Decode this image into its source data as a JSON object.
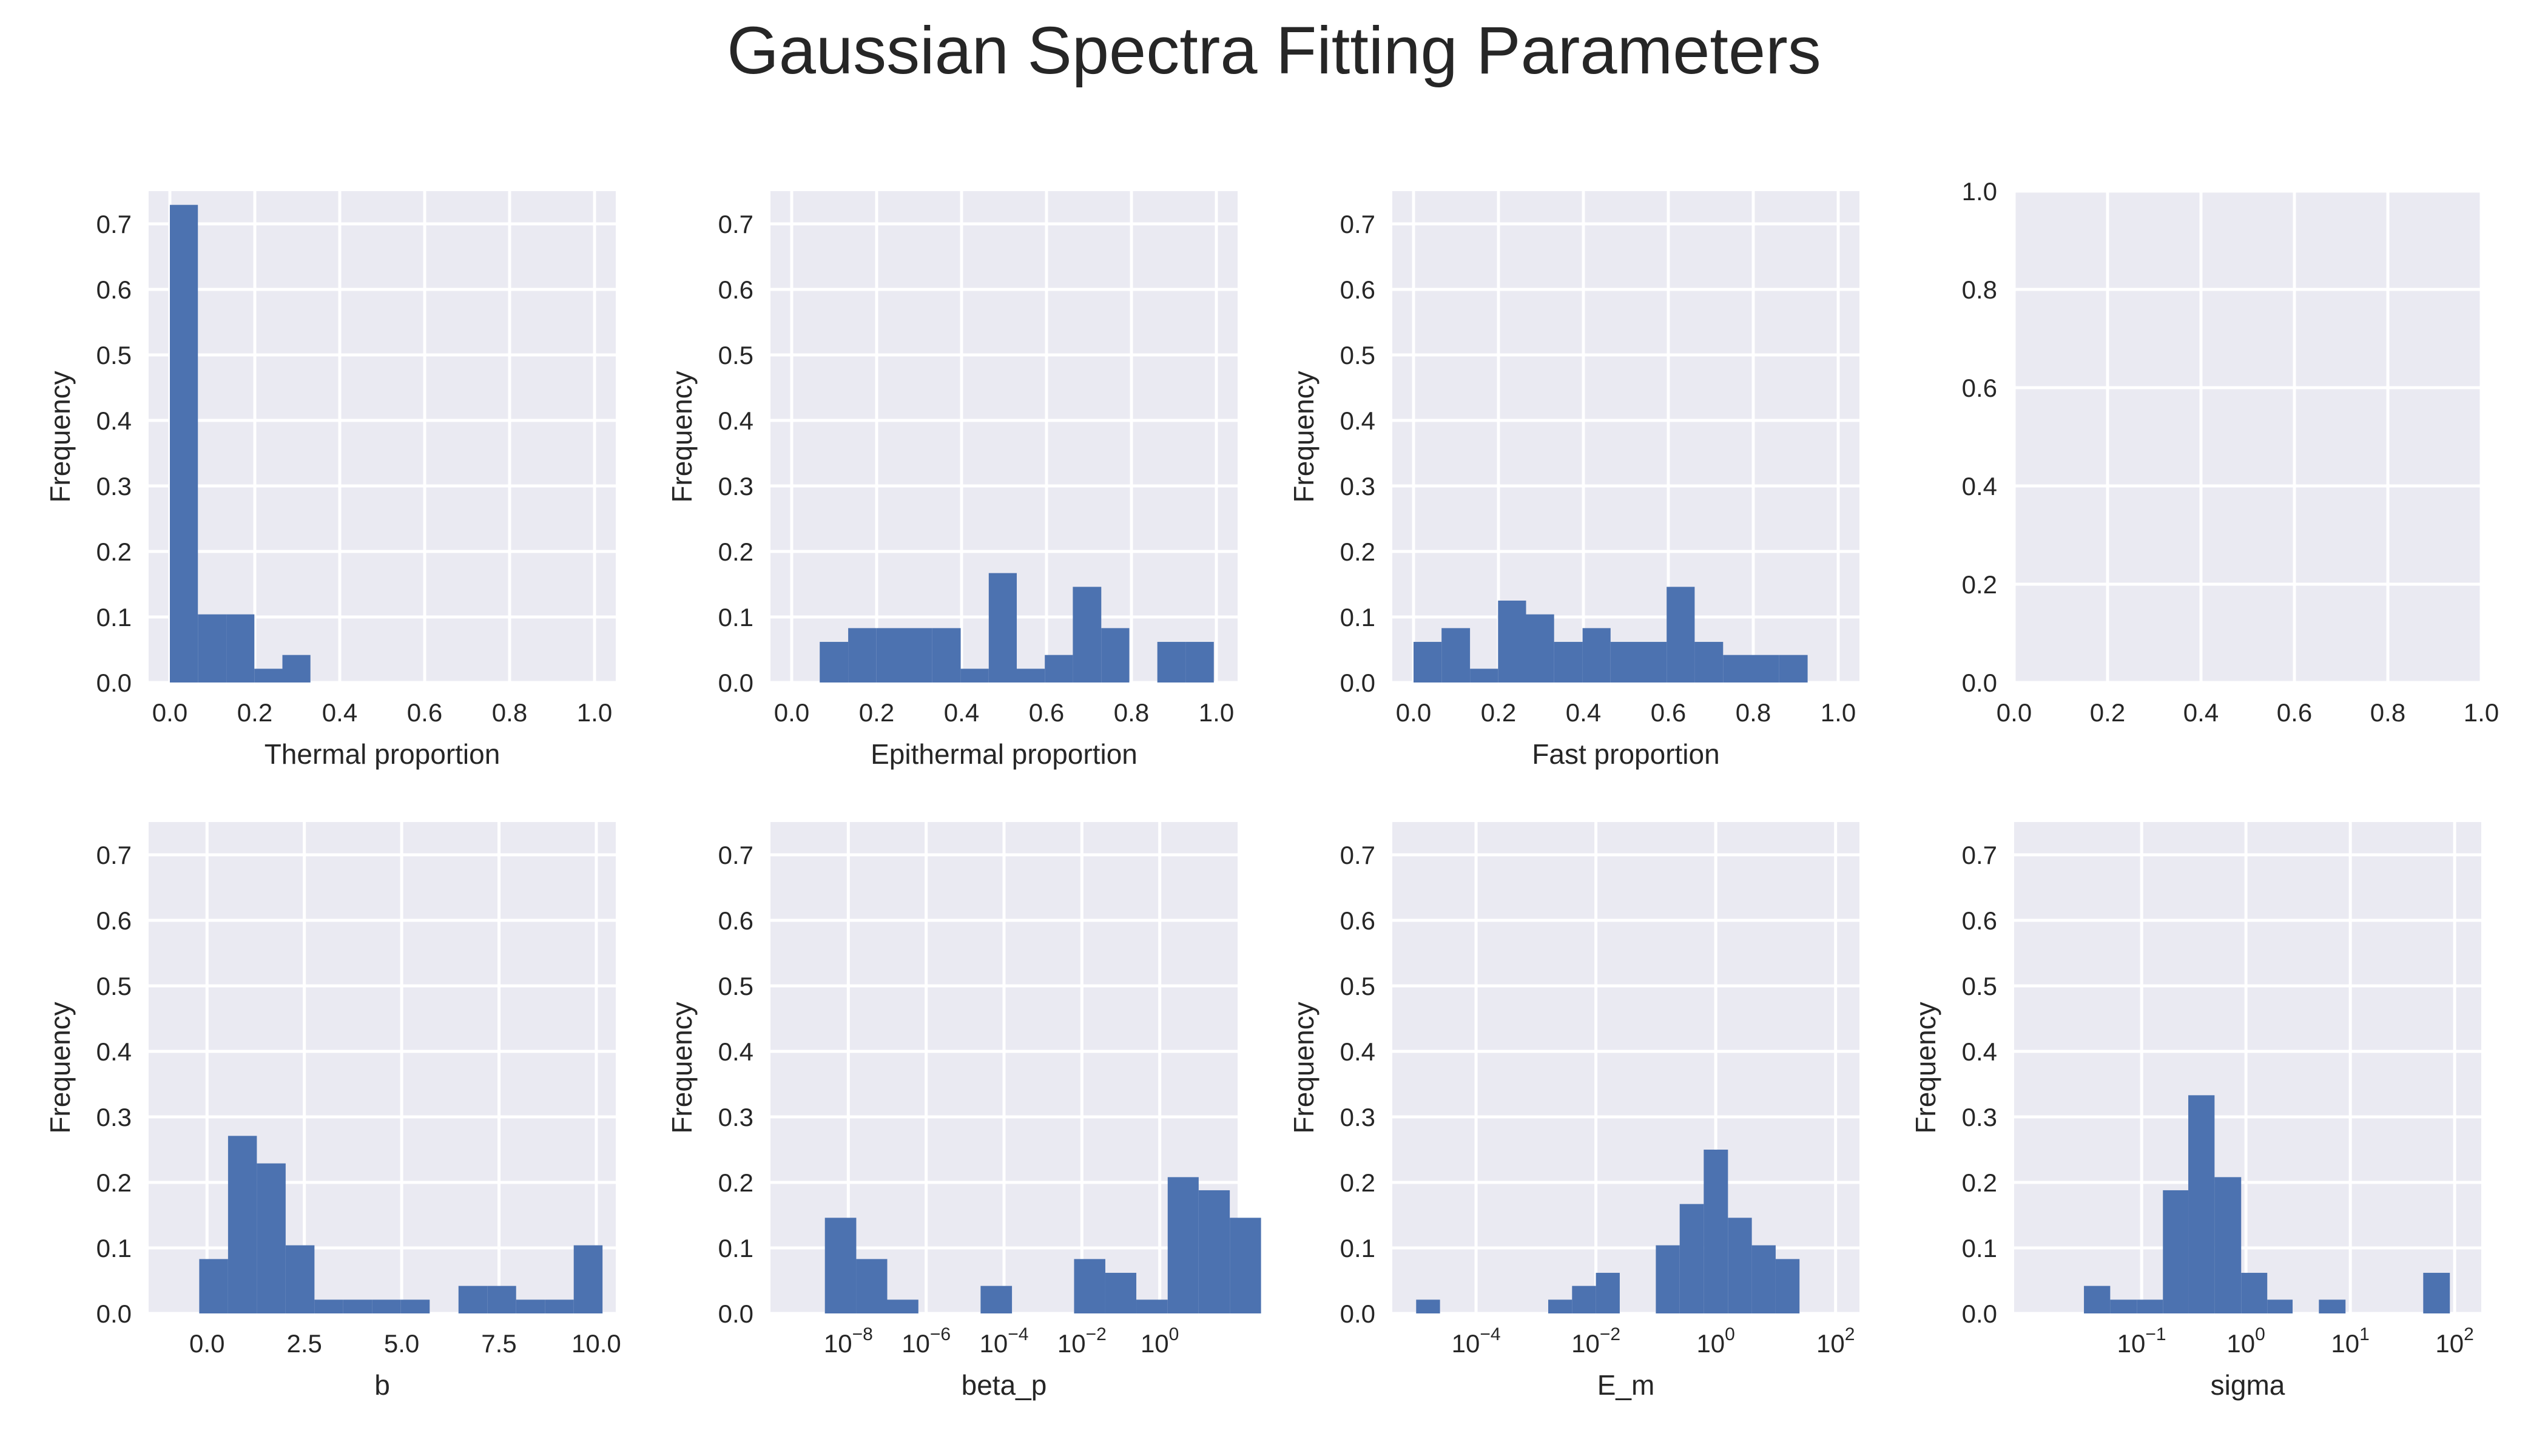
{
  "figure": {
    "title": "Gaussian Spectra Fitting Parameters"
  },
  "colors": {
    "bar": "#4c72b0",
    "panel_bg": "#eaeaf2",
    "grid": "#ffffff",
    "text": "#262626"
  },
  "chart_data": [
    {
      "type": "bar",
      "xlabel": "Thermal proportion",
      "ylabel": "Frequency",
      "xscale": "linear",
      "xlim": [
        -0.05,
        1.05
      ],
      "ylim": [
        0,
        0.75
      ],
      "xticks": [
        0,
        0.2,
        0.4,
        0.6,
        0.8,
        1.0
      ],
      "xtick_labels": [
        "0.0",
        "0.2",
        "0.4",
        "0.6",
        "0.8",
        "1.0"
      ],
      "yticks": [
        0,
        0.1,
        0.2,
        0.3,
        0.4,
        0.5,
        0.6,
        0.7
      ],
      "ytick_labels": [
        "0.0",
        "0.1",
        "0.2",
        "0.3",
        "0.4",
        "0.5",
        "0.6",
        "0.7"
      ],
      "bins": [
        {
          "x0": 0.0,
          "x1": 0.066,
          "y": 0.729
        },
        {
          "x0": 0.066,
          "x1": 0.133,
          "y": 0.104
        },
        {
          "x0": 0.133,
          "x1": 0.199,
          "y": 0.104
        },
        {
          "x0": 0.199,
          "x1": 0.265,
          "y": 0.021
        },
        {
          "x0": 0.265,
          "x1": 0.331,
          "y": 0.042
        }
      ]
    },
    {
      "type": "bar",
      "xlabel": "Epithermal proportion",
      "ylabel": "Frequency",
      "xscale": "linear",
      "xlim": [
        -0.05,
        1.05
      ],
      "ylim": [
        0,
        0.75
      ],
      "xticks": [
        0,
        0.2,
        0.4,
        0.6,
        0.8,
        1.0
      ],
      "xtick_labels": [
        "0.0",
        "0.2",
        "0.4",
        "0.6",
        "0.8",
        "1.0"
      ],
      "yticks": [
        0,
        0.1,
        0.2,
        0.3,
        0.4,
        0.5,
        0.6,
        0.7
      ],
      "ytick_labels": [
        "0.0",
        "0.1",
        "0.2",
        "0.3",
        "0.4",
        "0.5",
        "0.6",
        "0.7"
      ],
      "bins": [
        {
          "x0": 0.066,
          "x1": 0.133,
          "y": 0.062
        },
        {
          "x0": 0.133,
          "x1": 0.199,
          "y": 0.083
        },
        {
          "x0": 0.199,
          "x1": 0.265,
          "y": 0.083
        },
        {
          "x0": 0.265,
          "x1": 0.331,
          "y": 0.083
        },
        {
          "x0": 0.331,
          "x1": 0.398,
          "y": 0.083
        },
        {
          "x0": 0.398,
          "x1": 0.464,
          "y": 0.021
        },
        {
          "x0": 0.464,
          "x1": 0.53,
          "y": 0.167
        },
        {
          "x0": 0.53,
          "x1": 0.596,
          "y": 0.021
        },
        {
          "x0": 0.596,
          "x1": 0.662,
          "y": 0.042
        },
        {
          "x0": 0.662,
          "x1": 0.729,
          "y": 0.146
        },
        {
          "x0": 0.729,
          "x1": 0.795,
          "y": 0.083
        },
        {
          "x0": 0.861,
          "x1": 0.928,
          "y": 0.062
        },
        {
          "x0": 0.928,
          "x1": 0.994,
          "y": 0.062
        }
      ]
    },
    {
      "type": "bar",
      "xlabel": "Fast proportion",
      "ylabel": "Frequency",
      "xscale": "linear",
      "xlim": [
        -0.05,
        1.05
      ],
      "ylim": [
        0,
        0.75
      ],
      "xticks": [
        0,
        0.2,
        0.4,
        0.6,
        0.8,
        1.0
      ],
      "xtick_labels": [
        "0.0",
        "0.2",
        "0.4",
        "0.6",
        "0.8",
        "1.0"
      ],
      "yticks": [
        0,
        0.1,
        0.2,
        0.3,
        0.4,
        0.5,
        0.6,
        0.7
      ],
      "ytick_labels": [
        "0.0",
        "0.1",
        "0.2",
        "0.3",
        "0.4",
        "0.5",
        "0.6",
        "0.7"
      ],
      "bins": [
        {
          "x0": 0.0,
          "x1": 0.066,
          "y": 0.062
        },
        {
          "x0": 0.066,
          "x1": 0.133,
          "y": 0.083
        },
        {
          "x0": 0.133,
          "x1": 0.199,
          "y": 0.021
        },
        {
          "x0": 0.199,
          "x1": 0.265,
          "y": 0.125
        },
        {
          "x0": 0.265,
          "x1": 0.331,
          "y": 0.104
        },
        {
          "x0": 0.331,
          "x1": 0.398,
          "y": 0.062
        },
        {
          "x0": 0.398,
          "x1": 0.464,
          "y": 0.083
        },
        {
          "x0": 0.464,
          "x1": 0.53,
          "y": 0.062
        },
        {
          "x0": 0.53,
          "x1": 0.596,
          "y": 0.062
        },
        {
          "x0": 0.596,
          "x1": 0.662,
          "y": 0.146
        },
        {
          "x0": 0.662,
          "x1": 0.729,
          "y": 0.062
        },
        {
          "x0": 0.729,
          "x1": 0.795,
          "y": 0.042
        },
        {
          "x0": 0.795,
          "x1": 0.861,
          "y": 0.042
        },
        {
          "x0": 0.861,
          "x1": 0.928,
          "y": 0.042
        }
      ]
    },
    {
      "type": "bar",
      "xlabel": "",
      "ylabel": "",
      "xscale": "linear",
      "xlim": [
        0,
        1
      ],
      "ylim": [
        0,
        1
      ],
      "xticks": [
        0,
        0.2,
        0.4,
        0.6,
        0.8,
        1.0
      ],
      "xtick_labels": [
        "0.0",
        "0.2",
        "0.4",
        "0.6",
        "0.8",
        "1.0"
      ],
      "yticks": [
        0,
        0.2,
        0.4,
        0.6,
        0.8,
        1.0
      ],
      "ytick_labels": [
        "0.0",
        "0.2",
        "0.4",
        "0.6",
        "0.8",
        "1.0"
      ],
      "bins": []
    },
    {
      "type": "bar",
      "xlabel": "b",
      "ylabel": "Frequency",
      "xscale": "linear",
      "xlim": [
        -1.5,
        10.5
      ],
      "ylim": [
        0,
        0.75
      ],
      "xticks": [
        0,
        2.5,
        5.0,
        7.5,
        10.0
      ],
      "xtick_labels": [
        "0.0",
        "2.5",
        "5.0",
        "7.5",
        "10.0"
      ],
      "yticks": [
        0,
        0.1,
        0.2,
        0.3,
        0.4,
        0.5,
        0.6,
        0.7
      ],
      "ytick_labels": [
        "0.0",
        "0.1",
        "0.2",
        "0.3",
        "0.4",
        "0.5",
        "0.6",
        "0.7"
      ],
      "bins": [
        {
          "x0": -0.2,
          "x1": 0.54,
          "y": 0.083
        },
        {
          "x0": 0.54,
          "x1": 1.28,
          "y": 0.271
        },
        {
          "x0": 1.28,
          "x1": 2.02,
          "y": 0.229
        },
        {
          "x0": 2.02,
          "x1": 2.76,
          "y": 0.104
        },
        {
          "x0": 2.76,
          "x1": 3.5,
          "y": 0.021
        },
        {
          "x0": 3.5,
          "x1": 4.24,
          "y": 0.021
        },
        {
          "x0": 4.24,
          "x1": 4.98,
          "y": 0.021
        },
        {
          "x0": 4.98,
          "x1": 5.72,
          "y": 0.021
        },
        {
          "x0": 6.46,
          "x1": 7.2,
          "y": 0.042
        },
        {
          "x0": 7.2,
          "x1": 7.94,
          "y": 0.042
        },
        {
          "x0": 7.94,
          "x1": 8.68,
          "y": 0.021
        },
        {
          "x0": 8.68,
          "x1": 9.42,
          "y": 0.021
        },
        {
          "x0": 9.42,
          "x1": 10.16,
          "y": 0.104
        }
      ]
    },
    {
      "type": "bar",
      "xlabel": "beta_p",
      "ylabel": "Frequency",
      "xscale": "log",
      "xlim": [
        1e-10,
        100
      ],
      "ylim": [
        0,
        0.75
      ],
      "xticks": [
        1e-08,
        1e-06,
        0.0001,
        0.01,
        1
      ],
      "xtick_labels": [
        {
          "base": "10",
          "exp": "−8"
        },
        {
          "base": "10",
          "exp": "−6"
        },
        {
          "base": "10",
          "exp": "−4"
        },
        {
          "base": "10",
          "exp": "−2"
        },
        {
          "base": "10",
          "exp": "0"
        }
      ],
      "yticks": [
        0,
        0.1,
        0.2,
        0.3,
        0.4,
        0.5,
        0.6,
        0.7
      ],
      "ytick_labels": [
        "0.0",
        "0.1",
        "0.2",
        "0.3",
        "0.4",
        "0.5",
        "0.6",
        "0.7"
      ],
      "bins": [
        {
          "x0": 2.5e-09,
          "x1": 1.6e-08,
          "y": 0.146
        },
        {
          "x0": 1.6e-08,
          "x1": 1e-07,
          "y": 0.083
        },
        {
          "x0": 1e-07,
          "x1": 6.3e-07,
          "y": 0.021
        },
        {
          "x0": 2.5e-05,
          "x1": 0.00016,
          "y": 0.042
        },
        {
          "x0": 0.0063,
          "x1": 0.04,
          "y": 0.083
        },
        {
          "x0": 0.04,
          "x1": 0.25,
          "y": 0.062
        },
        {
          "x0": 0.25,
          "x1": 1.6,
          "y": 0.021
        },
        {
          "x0": 1.6,
          "x1": 10,
          "y": 0.208
        },
        {
          "x0": 10,
          "x1": 63,
          "y": 0.188
        },
        {
          "x0": 63,
          "x1": 400,
          "y": 0.146
        }
      ]
    },
    {
      "type": "bar",
      "xlabel": "E_m",
      "ylabel": "Frequency",
      "xscale": "log",
      "xlim": [
        4e-06,
        250
      ],
      "ylim": [
        0,
        0.75
      ],
      "xticks": [
        0.0001,
        0.01,
        1,
        100
      ],
      "xtick_labels": [
        {
          "base": "10",
          "exp": "−4"
        },
        {
          "base": "10",
          "exp": "−2"
        },
        {
          "base": "10",
          "exp": "0"
        },
        {
          "base": "10",
          "exp": "2"
        }
      ],
      "yticks": [
        0,
        0.1,
        0.2,
        0.3,
        0.4,
        0.5,
        0.6,
        0.7
      ],
      "ytick_labels": [
        "0.0",
        "0.1",
        "0.2",
        "0.3",
        "0.4",
        "0.5",
        "0.6",
        "0.7"
      ],
      "bins": [
        {
          "x0": 1e-05,
          "x1": 2.5e-05,
          "y": 0.021
        },
        {
          "x0": 0.0016,
          "x1": 0.004,
          "y": 0.021
        },
        {
          "x0": 0.004,
          "x1": 0.01,
          "y": 0.042
        },
        {
          "x0": 0.01,
          "x1": 0.025,
          "y": 0.062
        },
        {
          "x0": 0.1,
          "x1": 0.25,
          "y": 0.104
        },
        {
          "x0": 0.25,
          "x1": 0.63,
          "y": 0.167
        },
        {
          "x0": 0.63,
          "x1": 1.6,
          "y": 0.25
        },
        {
          "x0": 1.6,
          "x1": 4,
          "y": 0.146
        },
        {
          "x0": 4,
          "x1": 10,
          "y": 0.104
        },
        {
          "x0": 10,
          "x1": 25,
          "y": 0.083
        }
      ]
    },
    {
      "type": "bar",
      "xlabel": "sigma",
      "ylabel": "Frequency",
      "xscale": "log",
      "xlim": [
        0.006,
        180
      ],
      "ylim": [
        0,
        0.75
      ],
      "xticks": [
        0.1,
        1,
        10,
        100
      ],
      "xtick_labels": [
        {
          "base": "10",
          "exp": "−1"
        },
        {
          "base": "10",
          "exp": "0"
        },
        {
          "base": "10",
          "exp": "1"
        },
        {
          "base": "10",
          "exp": "2"
        }
      ],
      "yticks": [
        0,
        0.1,
        0.2,
        0.3,
        0.4,
        0.5,
        0.6,
        0.7
      ],
      "ytick_labels": [
        "0.0",
        "0.1",
        "0.2",
        "0.3",
        "0.4",
        "0.5",
        "0.6",
        "0.7"
      ],
      "bins": [
        {
          "x0": 0.028,
          "x1": 0.05,
          "y": 0.042
        },
        {
          "x0": 0.05,
          "x1": 0.09,
          "y": 0.021
        },
        {
          "x0": 0.09,
          "x1": 0.16,
          "y": 0.021
        },
        {
          "x0": 0.16,
          "x1": 0.28,
          "y": 0.188
        },
        {
          "x0": 0.28,
          "x1": 0.5,
          "y": 0.333
        },
        {
          "x0": 0.5,
          "x1": 0.9,
          "y": 0.208
        },
        {
          "x0": 0.9,
          "x1": 1.6,
          "y": 0.062
        },
        {
          "x0": 1.6,
          "x1": 2.8,
          "y": 0.021
        },
        {
          "x0": 5,
          "x1": 9,
          "y": 0.021
        },
        {
          "x0": 50,
          "x1": 90,
          "y": 0.062
        }
      ]
    }
  ]
}
